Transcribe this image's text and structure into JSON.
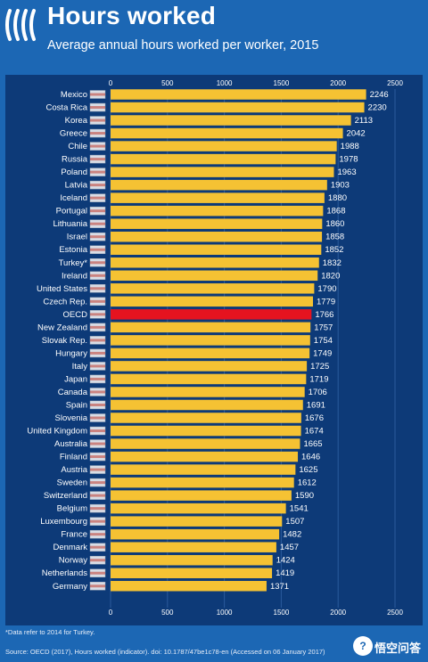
{
  "header": {
    "title": "Hours worked",
    "subtitle": "Average annual hours worked per worker, 2015"
  },
  "colors": {
    "background": "#1c67b4",
    "panel": "#0d3a78",
    "bar": "#f5c233",
    "highlight_bar": "#e5131f",
    "text": "#ffffff"
  },
  "footnote": "*Data refer to 2014 for Turkey.",
  "source": "Source: OECD (2017), Hours worked (indicator). doi: 10.1787/47be1c78-en (Accessed on 06 January 2017)",
  "watermark": {
    "icon": "search-icon",
    "text": "悟空问答"
  },
  "chart_data": {
    "type": "bar",
    "orientation": "horizontal",
    "title": "Hours worked",
    "subtitle": "Average annual hours worked per worker, 2015",
    "xlim": [
      0,
      2500
    ],
    "xticks": [
      "0",
      "500",
      "1000",
      "1500",
      "2000",
      "2500"
    ],
    "highlight": "OECD",
    "data_labels": true,
    "grid": true,
    "categories": [
      "Mexico",
      "Costa Rica",
      "Korea",
      "Greece",
      "Chile",
      "Russia",
      "Poland",
      "Latvia",
      "Iceland",
      "Portugal",
      "Lithuania",
      "Israel",
      "Estonia",
      "Turkey*",
      "Ireland",
      "United States",
      "Czech Rep.",
      "OECD",
      "New Zealand",
      "Slovak Rep.",
      "Hungary",
      "Italy",
      "Japan",
      "Canada",
      "Spain",
      "Slovenia",
      "United Kingdom",
      "Australia",
      "Finland",
      "Austria",
      "Sweden",
      "Switzerland",
      "Belgium",
      "Luxembourg",
      "France",
      "Denmark",
      "Norway",
      "Netherlands",
      "Germany"
    ],
    "values": [
      2246,
      2230,
      2113,
      2042,
      1988,
      1978,
      1963,
      1903,
      1880,
      1868,
      1860,
      1858,
      1852,
      1832,
      1820,
      1790,
      1779,
      1766,
      1757,
      1754,
      1749,
      1725,
      1719,
      1706,
      1691,
      1676,
      1674,
      1665,
      1646,
      1625,
      1612,
      1590,
      1541,
      1507,
      1482,
      1457,
      1424,
      1419,
      1371
    ]
  }
}
